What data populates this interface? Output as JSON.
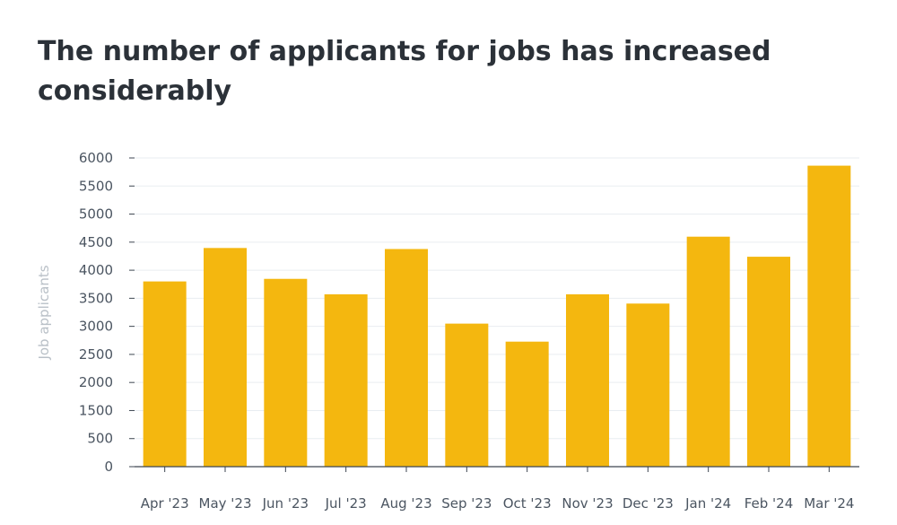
{
  "chart_data": {
    "type": "bar",
    "title": "The number of applicants for jobs has increased considerably",
    "xlabel": "",
    "ylabel": "Job applicants",
    "categories": [
      "Apr '23",
      "May '23",
      "Jun '23",
      "Jul '23",
      "Aug '23",
      "Sep '23",
      "Oct '23",
      "Nov '23",
      "Dec '23",
      "Jan '24",
      "Feb '24",
      "Mar '24"
    ],
    "values": [
      3600,
      4250,
      3650,
      3350,
      4230,
      2780,
      2430,
      3350,
      3170,
      4470,
      4080,
      5850
    ],
    "y_tick_labels": [
      "0",
      "500",
      "1500",
      "2000",
      "2500",
      "3000",
      "3500",
      "4000",
      "4500",
      "5000",
      "5500",
      "6000"
    ],
    "ylim": [
      0,
      6000
    ],
    "grid": true,
    "legend": "none",
    "colors": {
      "bar": "#f4b70f",
      "grid": "#e9edf1",
      "axis": "#3d4650",
      "title": "#2b3138"
    }
  }
}
